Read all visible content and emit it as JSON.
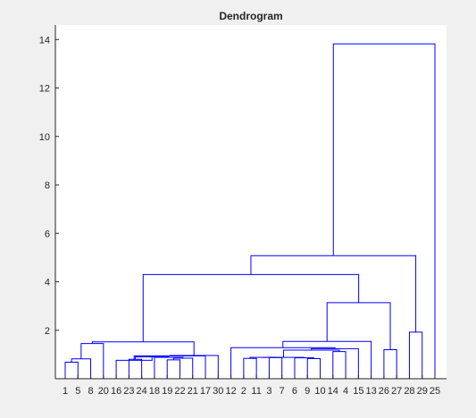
{
  "figure": {
    "background": "#f0f0f0",
    "axes_background": "#ffffff",
    "axis_color": "#262626"
  },
  "chart_data": {
    "type": "dendrogram",
    "title": "Dendrogram",
    "xlabel": "",
    "ylabel": "",
    "ylim": [
      0,
      14.6
    ],
    "yticks": [
      2,
      4,
      6,
      8,
      10,
      12,
      14
    ],
    "ytick_labels": [
      "2",
      "4",
      "6",
      "8",
      "10",
      "12",
      "14"
    ],
    "leaf_labels": [
      "1",
      "5",
      "8",
      "20",
      "16",
      "23",
      "24",
      "18",
      "19",
      "22",
      "21",
      "17",
      "30",
      "12",
      "2",
      "11",
      "3",
      "7",
      "6",
      "9",
      "10",
      "14",
      "4",
      "15",
      "13",
      "26",
      "27",
      "28",
      "29",
      "25"
    ],
    "line_color": "#0000ff",
    "grid": false,
    "links": [
      {
        "left": 1,
        "right": 2,
        "height": 0.68
      },
      {
        "left": 1.5,
        "right": 3,
        "height": 0.82
      },
      {
        "left": 6,
        "right": 7,
        "height": 0.8
      },
      {
        "left": 9,
        "right": 10,
        "height": 0.78
      },
      {
        "left": 9.5,
        "right": 11,
        "height": 0.85
      },
      {
        "left": 8,
        "right": 10.25,
        "height": 0.88
      },
      {
        "left": 6.5,
        "right": 9.125,
        "height": 0.9
      },
      {
        "left": 5,
        "right": 7.8125,
        "height": 0.76
      },
      {
        "left": 6.40625,
        "right": 12,
        "height": 0.94
      },
      {
        "left": 9.203125,
        "right": 13,
        "height": 0.96
      },
      {
        "left": 2.25,
        "right": 4,
        "height": 1.45
      },
      {
        "left": 3.125,
        "right": 11.1015625,
        "height": 1.52
      },
      {
        "left": 15,
        "right": 16,
        "height": 0.84
      },
      {
        "left": 17,
        "right": 18,
        "height": 0.87
      },
      {
        "left": 15.5,
        "right": 17.5,
        "height": 0.88
      },
      {
        "left": 20,
        "right": 21,
        "height": 0.83
      },
      {
        "left": 19,
        "right": 20.5,
        "height": 0.86
      },
      {
        "left": 16.5,
        "right": 19.75,
        "height": 0.88
      },
      {
        "left": 22,
        "right": 23,
        "height": 1.12
      },
      {
        "left": 18.125,
        "right": 22.5,
        "height": 1.18
      },
      {
        "left": 20.3125,
        "right": 24,
        "height": 1.24
      },
      {
        "left": 14,
        "right": 22.15625,
        "height": 1.28
      },
      {
        "left": 18.078125,
        "right": 25,
        "height": 1.54
      },
      {
        "left": 26,
        "right": 27,
        "height": 1.2
      },
      {
        "left": 21.5390625,
        "right": 26.5,
        "height": 3.14
      },
      {
        "left": 7.11328125,
        "right": 24.01953125,
        "height": 4.3
      },
      {
        "left": 28,
        "right": 29,
        "height": 1.92
      },
      {
        "left": 15.56640625,
        "right": 28.5,
        "height": 5.08
      },
      {
        "left": 22.033203125,
        "right": 30,
        "height": 13.82
      }
    ]
  }
}
